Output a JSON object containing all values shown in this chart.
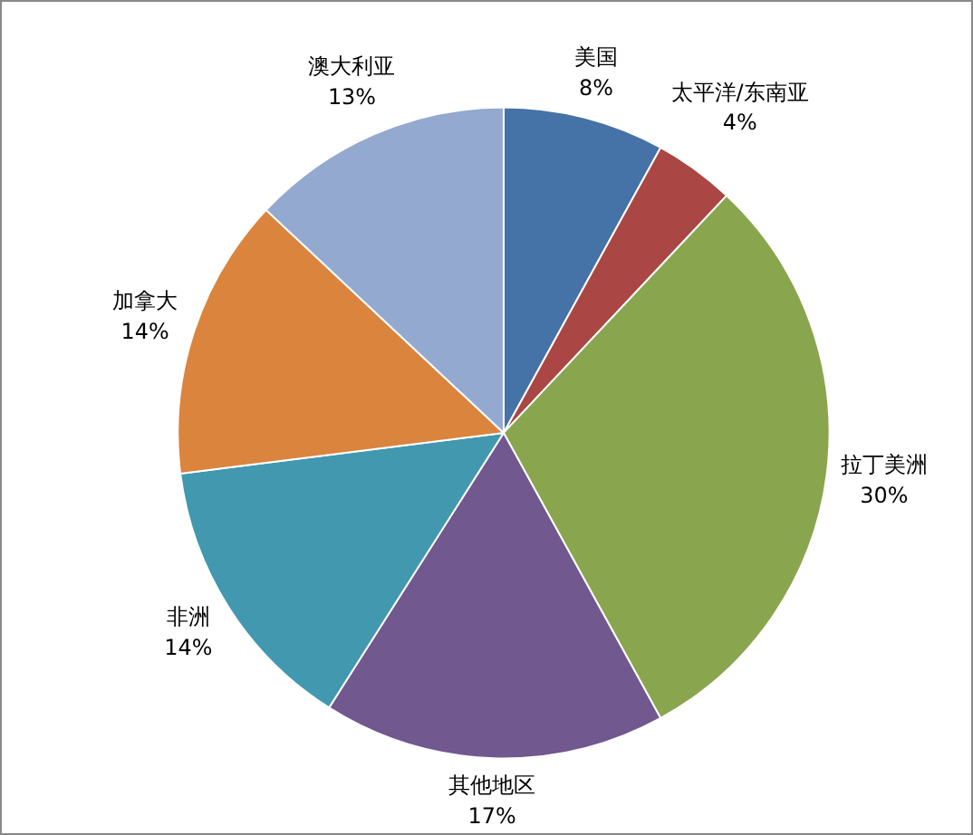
{
  "chart_data": {
    "type": "pie",
    "categories": [
      "美国",
      "太平洋/东南亚",
      "拉丁美洲",
      "其他地区",
      "非洲",
      "加拿大",
      "澳大利亚"
    ],
    "values": [
      8,
      4,
      30,
      17,
      14,
      14,
      13
    ],
    "value_labels": [
      "8%",
      "4%",
      "30%",
      "17%",
      "14%",
      "14%",
      "13%"
    ],
    "colors": [
      "#4572a7",
      "#aa4643",
      "#89a54e",
      "#71588f",
      "#4198af",
      "#db843d",
      "#93a9cf"
    ],
    "legend": false
  }
}
